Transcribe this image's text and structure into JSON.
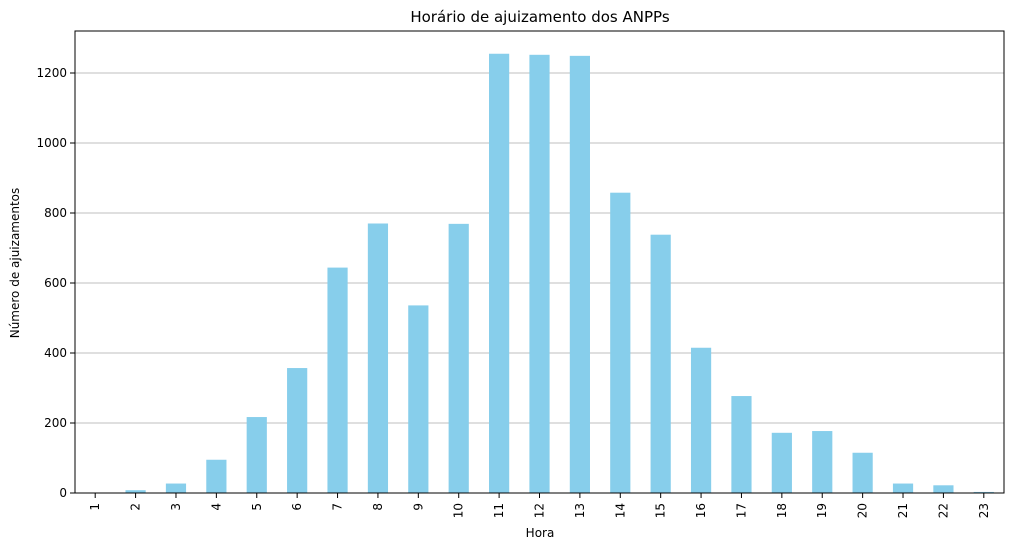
{
  "chart_data": {
    "type": "bar",
    "title": "Horário de ajuizamento dos ANPPs",
    "xlabel": "Hora",
    "ylabel": "Número de ajuizamentos",
    "categories": [
      "1",
      "2",
      "3",
      "4",
      "5",
      "6",
      "7",
      "8",
      "9",
      "10",
      "11",
      "12",
      "13",
      "14",
      "15",
      "16",
      "17",
      "18",
      "19",
      "20",
      "21",
      "22",
      "23"
    ],
    "values": [
      1,
      8,
      27,
      95,
      217,
      357,
      644,
      770,
      536,
      769,
      1255,
      1252,
      1249,
      858,
      738,
      415,
      277,
      172,
      177,
      115,
      27,
      22,
      3
    ],
    "ylim": [
      0,
      1320
    ],
    "yticks": [
      0,
      200,
      400,
      600,
      800,
      1000,
      1200
    ],
    "grid": "y",
    "bar_color": "#87ceeb",
    "grid_color": "#bfbfbf"
  }
}
